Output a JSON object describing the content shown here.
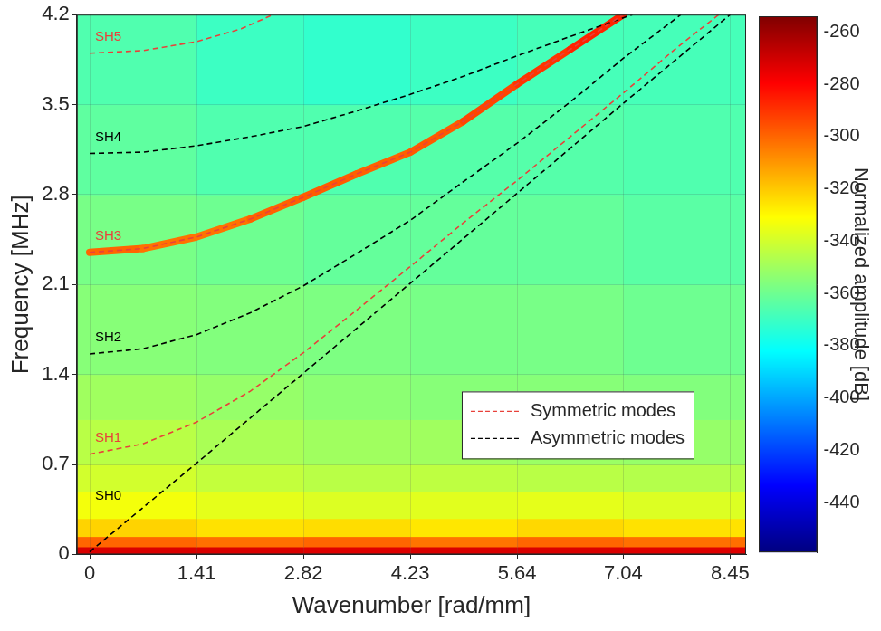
{
  "chart_data": {
    "type": "line",
    "x_label": "Wavenumber [rad/mm]",
    "y_label": "Frequency [MHz]",
    "xlim": [
      -0.17,
      8.66
    ],
    "xticks": [
      0,
      1.41,
      2.82,
      4.23,
      5.64,
      7.04,
      8.45
    ],
    "ylim": [
      0,
      4.2
    ],
    "yticks": [
      0,
      0.7,
      1.4,
      2.1,
      2.8,
      3.5,
      4.2
    ],
    "grid": true,
    "legend": "lower right",
    "series": [
      {
        "name": "Symmetric modes",
        "color": "#e8413a",
        "line_style": "dashed",
        "curves": [
          {
            "label": "SH1",
            "x": [
              0,
              0.7,
              1.41,
              2.12,
              2.82,
              3.52,
              4.23,
              4.93,
              5.64,
              6.34,
              7.04,
              7.74,
              8.3
            ],
            "y": [
              0.78,
              0.86,
              1.03,
              1.27,
              1.57,
              1.9,
              2.24,
              2.58,
              2.91,
              3.25,
              3.59,
              3.94,
              4.2
            ]
          },
          {
            "label": "SH3",
            "x": [
              0,
              0.7,
              1.41,
              2.12,
              2.82,
              3.52,
              4.23,
              4.93,
              5.64,
              6.34,
              7.04
            ],
            "y": [
              2.35,
              2.38,
              2.47,
              2.61,
              2.78,
              2.96,
              3.13,
              3.37,
              3.66,
              3.93,
              4.2
            ]
          },
          {
            "label": "SH5",
            "x": [
              0,
              0.7,
              1.41,
              2.0,
              2.42
            ],
            "y": [
              3.9,
              3.92,
              3.99,
              4.09,
              4.2
            ]
          }
        ]
      },
      {
        "name": "Asymmetric modes",
        "color": "#000000",
        "line_style": "dashed",
        "curves": [
          {
            "label": "SH0",
            "x": [
              0,
              1.41,
              2.82,
              4.23,
              5.64,
              7.04,
              8.45
            ],
            "y": [
              0.02,
              0.71,
              1.41,
              2.11,
              2.81,
              3.51,
              4.2
            ]
          },
          {
            "label": "SH2",
            "x": [
              0,
              0.7,
              1.41,
              2.12,
              2.82,
              3.52,
              4.23,
              4.93,
              5.64,
              6.34,
              7.04,
              7.8
            ],
            "y": [
              1.56,
              1.6,
              1.71,
              1.88,
              2.09,
              2.34,
              2.6,
              2.9,
              3.2,
              3.52,
              3.86,
              4.2
            ]
          },
          {
            "label": "SH4",
            "x": [
              0,
              0.7,
              1.41,
              2.12,
              2.82,
              3.52,
              4.23,
              4.93,
              5.64,
              6.34,
              7.16
            ],
            "y": [
              3.12,
              3.13,
              3.18,
              3.25,
              3.33,
              3.45,
              3.58,
              3.72,
              3.88,
              4.03,
              4.2
            ]
          }
        ]
      }
    ],
    "heatmap": {
      "x_edges": [
        -0.17,
        1.41,
        2.82,
        4.23,
        5.64,
        7.04,
        8.66
      ],
      "y_edges": [
        0,
        0.06,
        0.14,
        0.28,
        0.49,
        0.7,
        1.05,
        1.4,
        2.1,
        2.8,
        3.5,
        4.2
      ],
      "values": [
        [
          -272,
          -272,
          -273,
          -272,
          -272,
          -273
        ],
        [
          -300,
          -302,
          -300,
          -303,
          -300,
          -302
        ],
        [
          -322,
          -325,
          -324,
          -326,
          -323,
          -325
        ],
        [
          -333,
          -336,
          -338,
          -337,
          -336,
          -338
        ],
        [
          -340,
          -343,
          -345,
          -344,
          -345,
          -346
        ],
        [
          -345,
          -348,
          -350,
          -350,
          -351,
          -352
        ],
        [
          -350,
          -352,
          -354,
          -355,
          -355,
          -356
        ],
        [
          -355,
          -356,
          -357,
          -358,
          -358,
          -360
        ],
        [
          -358,
          -360,
          -362,
          -362,
          -362,
          -364
        ],
        [
          -363,
          -366,
          -366,
          -365,
          -365,
          -366
        ],
        [
          -366,
          -370,
          -372,
          -370,
          -368,
          -368
        ]
      ],
      "peak_x": [
        0,
        0.7,
        1.41,
        2.12,
        2.82,
        3.52,
        4.23,
        4.93,
        5.64,
        6.34,
        7.04
      ],
      "peak_y": [
        2.35,
        2.38,
        2.47,
        2.61,
        2.78,
        2.96,
        3.13,
        3.37,
        3.66,
        3.93,
        4.2
      ],
      "peak_values": [
        -300,
        -300,
        -305,
        -300,
        -298,
        -298,
        -300,
        -295,
        -292,
        -288,
        -285
      ]
    },
    "colorbar": {
      "label": "Normalized amplitude [dB]",
      "range": [
        -459,
        -254
      ],
      "ticks": [
        -260,
        -280,
        -300,
        -320,
        -340,
        -360,
        -380,
        -400,
        -420,
        -440
      ]
    }
  }
}
